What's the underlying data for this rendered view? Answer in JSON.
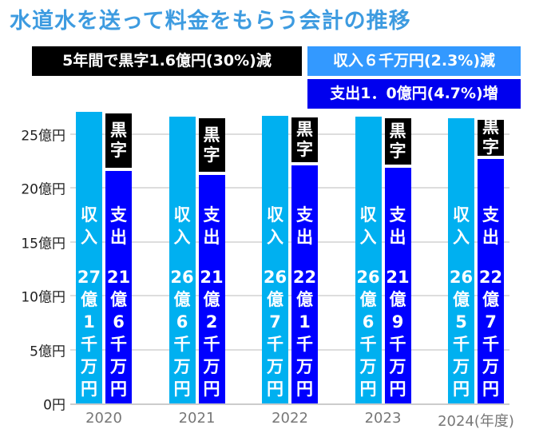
{
  "chart_data": {
    "type": "bar",
    "title": "水道水を送って料金をもらう会計の推移",
    "xlabel": "(年度)",
    "ylabel": "",
    "ylim": [
      0,
      25
    ],
    "yticks": [
      "0円",
      "5億円",
      "10億円",
      "15億円",
      "20億円",
      "25億円"
    ],
    "categories": [
      "2020",
      "2021",
      "2022",
      "2023",
      "2024"
    ],
    "series": [
      {
        "name": "収入",
        "color": "#00b0f0",
        "values": [
          27.1,
          26.6,
          26.7,
          26.6,
          26.5
        ],
        "labels": [
          "27億1千万円",
          "26億6千万円",
          "26億7千万円",
          "26億6千万円",
          "26億5千万円"
        ]
      },
      {
        "name": "支出",
        "color": "#0000ff",
        "values": [
          21.6,
          21.2,
          22.1,
          21.9,
          22.7
        ],
        "labels": [
          "21億6千万円",
          "21億2千万円",
          "22億1千万円",
          "21億9千万円",
          "22億7千万円"
        ]
      }
    ],
    "surplus_label": "黒字",
    "annotations": {
      "surplus": "5年間で黒字1.6億円(30%)減",
      "income": "収入６千万円(2.3%)減",
      "expense": "支出1．0億円(4.7%)増"
    }
  }
}
